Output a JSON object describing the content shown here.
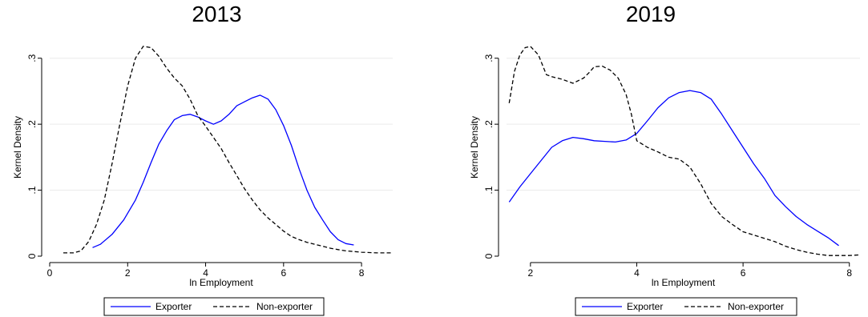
{
  "chart_data": [
    {
      "type": "line",
      "title": "2013",
      "xlabel": "ln Employment",
      "ylabel": "Kernel Density",
      "xlim": [
        0,
        8.8
      ],
      "ylim": [
        0,
        0.33
      ],
      "xticks": [
        0,
        2,
        4,
        6,
        8
      ],
      "yticks": [
        0,
        0.1,
        0.2,
        0.3
      ],
      "xtick_labels": [
        "0",
        "2",
        "4",
        "6",
        "8"
      ],
      "ytick_labels": [
        "0",
        ".1",
        ".2",
        ".3"
      ],
      "grid": true,
      "legend_position": "bottom",
      "series": [
        {
          "name": "Exporter",
          "color": "#0000ff",
          "dash": "solid",
          "x": [
            1.1,
            1.3,
            1.6,
            1.9,
            2.2,
            2.4,
            2.6,
            2.8,
            3.0,
            3.2,
            3.4,
            3.6,
            3.8,
            4.0,
            4.2,
            4.4,
            4.6,
            4.8,
            5.0,
            5.2,
            5.4,
            5.6,
            5.8,
            6.0,
            6.2,
            6.4,
            6.6,
            6.8,
            7.0,
            7.2,
            7.4,
            7.6,
            7.8
          ],
          "y": [
            0.013,
            0.018,
            0.033,
            0.055,
            0.085,
            0.112,
            0.142,
            0.17,
            0.19,
            0.207,
            0.213,
            0.215,
            0.211,
            0.205,
            0.2,
            0.205,
            0.215,
            0.228,
            0.234,
            0.24,
            0.244,
            0.238,
            0.222,
            0.198,
            0.168,
            0.132,
            0.1,
            0.074,
            0.055,
            0.037,
            0.025,
            0.019,
            0.017
          ]
        },
        {
          "name": "Non-exporter",
          "color": "#000000",
          "dash": "dashed",
          "x": [
            0.35,
            0.6,
            0.8,
            1.0,
            1.2,
            1.4,
            1.6,
            1.8,
            2.0,
            2.2,
            2.4,
            2.6,
            2.8,
            3.0,
            3.2,
            3.4,
            3.6,
            3.8,
            4.0,
            4.2,
            4.4,
            4.6,
            4.8,
            5.0,
            5.2,
            5.4,
            5.6,
            5.8,
            6.0,
            6.2,
            6.4,
            6.6,
            6.8,
            7.0,
            7.2,
            7.4,
            7.6,
            7.8,
            8.0,
            8.4,
            8.8
          ],
          "y": [
            0.005,
            0.005,
            0.008,
            0.022,
            0.048,
            0.085,
            0.14,
            0.2,
            0.258,
            0.3,
            0.318,
            0.316,
            0.303,
            0.285,
            0.27,
            0.258,
            0.238,
            0.213,
            0.197,
            0.18,
            0.163,
            0.142,
            0.122,
            0.102,
            0.085,
            0.07,
            0.058,
            0.048,
            0.038,
            0.03,
            0.025,
            0.021,
            0.018,
            0.015,
            0.012,
            0.01,
            0.008,
            0.007,
            0.006,
            0.005,
            0.005
          ]
        }
      ]
    },
    {
      "type": "line",
      "title": "2019",
      "xlabel": "ln Employment",
      "ylabel": "Kernel Density",
      "xlim": [
        1.55,
        8.2
      ],
      "ylim": [
        0,
        0.33
      ],
      "xticks": [
        2,
        4,
        6,
        8
      ],
      "yticks": [
        0,
        0.1,
        0.2,
        0.3
      ],
      "xtick_labels": [
        "2",
        "4",
        "6",
        "8"
      ],
      "ytick_labels": [
        "0",
        ".1",
        ".2",
        ".3"
      ],
      "grid": true,
      "legend_position": "bottom",
      "series": [
        {
          "name": "Exporter",
          "color": "#0000ff",
          "dash": "solid",
          "x": [
            1.6,
            1.8,
            2.0,
            2.2,
            2.4,
            2.6,
            2.8,
            3.0,
            3.2,
            3.4,
            3.6,
            3.8,
            4.0,
            4.2,
            4.4,
            4.6,
            4.8,
            5.0,
            5.2,
            5.4,
            5.6,
            5.8,
            6.0,
            6.2,
            6.4,
            6.6,
            6.8,
            7.0,
            7.2,
            7.4,
            7.6,
            7.8
          ],
          "y": [
            0.082,
            0.105,
            0.125,
            0.145,
            0.165,
            0.175,
            0.18,
            0.178,
            0.175,
            0.174,
            0.173,
            0.176,
            0.186,
            0.205,
            0.225,
            0.24,
            0.248,
            0.251,
            0.248,
            0.238,
            0.215,
            0.19,
            0.165,
            0.14,
            0.118,
            0.092,
            0.075,
            0.06,
            0.048,
            0.038,
            0.028,
            0.016
          ]
        },
        {
          "name": "Non-exporter",
          "color": "#000000",
          "dash": "dashed",
          "x": [
            1.6,
            1.7,
            1.8,
            1.9,
            2.0,
            2.15,
            2.3,
            2.4,
            2.6,
            2.8,
            3.0,
            3.1,
            3.2,
            3.35,
            3.5,
            3.65,
            3.8,
            3.9,
            4.0,
            4.2,
            4.4,
            4.6,
            4.8,
            5.0,
            5.2,
            5.4,
            5.6,
            5.8,
            6.0,
            6.2,
            6.4,
            6.6,
            6.8,
            7.0,
            7.2,
            7.4,
            7.6,
            7.8,
            8.0,
            8.2
          ],
          "y": [
            0.232,
            0.28,
            0.305,
            0.316,
            0.318,
            0.305,
            0.275,
            0.272,
            0.268,
            0.262,
            0.27,
            0.278,
            0.287,
            0.288,
            0.282,
            0.27,
            0.245,
            0.215,
            0.175,
            0.165,
            0.158,
            0.15,
            0.147,
            0.135,
            0.11,
            0.08,
            0.06,
            0.048,
            0.037,
            0.032,
            0.027,
            0.022,
            0.015,
            0.01,
            0.006,
            0.003,
            0.001,
            0.001,
            0.001,
            0.002
          ]
        }
      ]
    }
  ]
}
